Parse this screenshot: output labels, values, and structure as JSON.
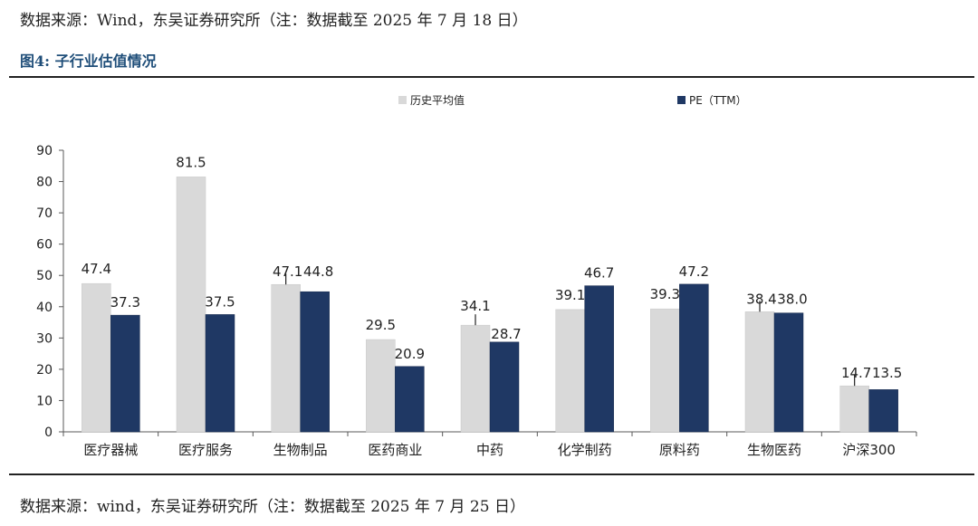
{
  "top_source": "数据来源：Wind，东吴证券研究所（注：数据截至 2025 年 7 月 18 日）",
  "figure_title": "图4:  子行业估值情况",
  "bottom_source": "数据来源：wind，东吴证券研究所（注：数据截至 2025 年 7 月 25 日）",
  "colors": {
    "hist": "#d9d9d9",
    "pe": "#1f3864",
    "axis": "#595959",
    "title": "#1f4e79"
  },
  "chart_data": {
    "type": "bar",
    "categories": [
      "医疗器械",
      "医疗服务",
      "生物制品",
      "医药商业",
      "中药",
      "化学制药",
      "原料药",
      "生物医药",
      "沪深300"
    ],
    "series": [
      {
        "name": "历史平均值",
        "values": [
          47.4,
          81.5,
          47.1,
          29.5,
          34.1,
          39.1,
          39.3,
          38.4,
          14.7
        ],
        "labels": [
          "47.4",
          "81.5",
          "47.1",
          "29.5",
          "34.1",
          "39.1",
          "39.3",
          "38.4",
          "14.7"
        ]
      },
      {
        "name": "PE（TTM）",
        "values": [
          37.3,
          37.5,
          44.8,
          20.9,
          28.7,
          46.7,
          47.2,
          38.0,
          13.5
        ],
        "labels": [
          "37.3",
          "37.5",
          "44.8",
          "20.9",
          "28.7",
          "46.7",
          "47.2",
          "38.0",
          "13.5"
        ]
      }
    ],
    "y_ticks": [
      "0",
      "10",
      "20",
      "30",
      "40",
      "50",
      "60",
      "70",
      "80",
      "90"
    ],
    "ylim": [
      0,
      90
    ],
    "legend_position": "top",
    "grid": false
  }
}
